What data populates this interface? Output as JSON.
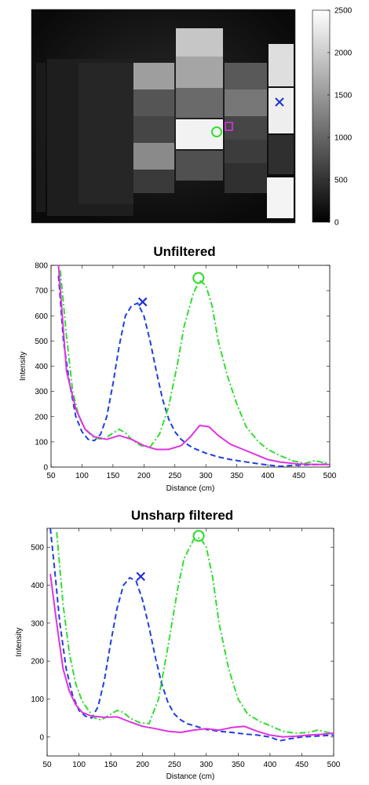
{
  "heatmap": {
    "colorbar": {
      "ticks": [
        0,
        500,
        1000,
        1500,
        2000,
        2500
      ],
      "range": [
        0,
        2500
      ],
      "colormap": "gray"
    },
    "markers": [
      {
        "type": "x",
        "color": "#1f2fd6"
      },
      {
        "type": "circle",
        "color": "#33dd33"
      },
      {
        "type": "square",
        "color": "#e033e0"
      }
    ]
  },
  "chart_data": [
    {
      "type": "line",
      "title": "Unfiltered",
      "xlabel": "Distance (cm)",
      "ylabel": "Intensity",
      "xlim": [
        50,
        500
      ],
      "ylim": [
        0,
        800
      ],
      "xticks": [
        50,
        100,
        150,
        200,
        250,
        300,
        350,
        400,
        450,
        500
      ],
      "yticks": [
        0,
        100,
        200,
        300,
        400,
        500,
        600,
        700,
        800
      ],
      "series": [
        {
          "style": "dashed",
          "color": "#1f3fe0",
          "x": [
            62,
            70,
            80,
            90,
            100,
            110,
            120,
            130,
            140,
            150,
            160,
            170,
            180,
            190,
            200,
            210,
            220,
            230,
            240,
            250,
            260,
            270,
            280,
            300,
            320,
            340,
            360,
            380,
            400,
            420,
            450,
            480,
            500
          ],
          "y": [
            760,
            500,
            330,
            200,
            140,
            110,
            105,
            130,
            200,
            330,
            480,
            600,
            640,
            650,
            600,
            500,
            380,
            270,
            190,
            140,
            110,
            90,
            75,
            55,
            40,
            30,
            22,
            15,
            8,
            3,
            8,
            10,
            12
          ]
        },
        {
          "style": "dashdot",
          "color": "#33dd33",
          "x": [
            65,
            75,
            85,
            95,
            105,
            120,
            135,
            150,
            160,
            170,
            180,
            195,
            210,
            225,
            240,
            255,
            265,
            280,
            290,
            300,
            310,
            320,
            335,
            350,
            365,
            385,
            400,
            420,
            440,
            460,
            475,
            490,
            500
          ],
          "y": [
            780,
            520,
            300,
            200,
            150,
            115,
            110,
            135,
            150,
            135,
            110,
            85,
            80,
            130,
            240,
            420,
            560,
            690,
            740,
            720,
            640,
            500,
            360,
            250,
            160,
            100,
            70,
            45,
            25,
            15,
            25,
            18,
            15
          ]
        },
        {
          "style": "solid",
          "color": "#e033e0",
          "x": [
            62,
            75,
            90,
            105,
            120,
            140,
            160,
            180,
            200,
            220,
            240,
            260,
            275,
            290,
            305,
            320,
            340,
            360,
            380,
            400,
            420,
            450,
            480,
            500
          ],
          "y": [
            800,
            380,
            230,
            150,
            120,
            110,
            125,
            110,
            85,
            70,
            70,
            85,
            120,
            165,
            160,
            125,
            90,
            70,
            50,
            30,
            20,
            12,
            10,
            10
          ]
        }
      ],
      "markers": [
        {
          "type": "x",
          "x": 198,
          "y": 655,
          "color": "#1f2fd6"
        },
        {
          "type": "circle",
          "x": 288,
          "y": 750,
          "color": "#33dd33"
        }
      ]
    },
    {
      "type": "line",
      "title": "Unsharp filtered",
      "xlabel": "Distance (cm)",
      "ylabel": "Intensity",
      "xlim": [
        50,
        500
      ],
      "ylim": [
        -50,
        550
      ],
      "xticks": [
        50,
        100,
        150,
        200,
        250,
        300,
        350,
        400,
        450,
        500
      ],
      "yticks": [
        0,
        100,
        200,
        300,
        400,
        500
      ],
      "series": [
        {
          "style": "dashed",
          "color": "#1f3fe0",
          "x": [
            55,
            62,
            70,
            80,
            90,
            100,
            110,
            120,
            130,
            140,
            150,
            160,
            170,
            180,
            190,
            200,
            210,
            220,
            230,
            240,
            250,
            260,
            270,
            280,
            300,
            320,
            340,
            360,
            380,
            400,
            415,
            430,
            450,
            470,
            500
          ],
          "y": [
            550,
            440,
            300,
            180,
            110,
            70,
            55,
            50,
            80,
            150,
            250,
            340,
            400,
            420,
            410,
            360,
            290,
            210,
            140,
            90,
            60,
            45,
            35,
            30,
            20,
            15,
            12,
            8,
            5,
            0,
            -10,
            -5,
            0,
            2,
            5
          ]
        },
        {
          "style": "dashdot",
          "color": "#33dd33",
          "x": [
            65,
            75,
            85,
            95,
            105,
            115,
            125,
            135,
            150,
            160,
            170,
            180,
            195,
            210,
            225,
            240,
            255,
            265,
            280,
            290,
            300,
            310,
            320,
            335,
            350,
            365,
            385,
            400,
            420,
            440,
            460,
            475,
            490,
            500
          ],
          "y": [
            540,
            350,
            220,
            140,
            95,
            70,
            50,
            45,
            60,
            70,
            65,
            50,
            38,
            35,
            100,
            240,
            390,
            470,
            520,
            525,
            500,
            420,
            300,
            180,
            100,
            60,
            40,
            30,
            15,
            10,
            12,
            18,
            12,
            10
          ]
        },
        {
          "style": "solid",
          "color": "#e033e0",
          "x": [
            55,
            65,
            75,
            85,
            95,
            105,
            120,
            140,
            160,
            180,
            200,
            220,
            240,
            260,
            280,
            300,
            320,
            340,
            360,
            380,
            400,
            420,
            440,
            460,
            480,
            500
          ],
          "y": [
            430,
            300,
            180,
            120,
            85,
            65,
            55,
            52,
            53,
            40,
            28,
            22,
            15,
            12,
            18,
            22,
            18,
            25,
            28,
            15,
            5,
            0,
            2,
            5,
            7,
            10
          ]
        }
      ],
      "markers": [
        {
          "type": "x",
          "x": 197,
          "y": 423,
          "color": "#1f2fd6"
        },
        {
          "type": "circle",
          "x": 288,
          "y": 530,
          "color": "#33dd33"
        }
      ]
    }
  ]
}
